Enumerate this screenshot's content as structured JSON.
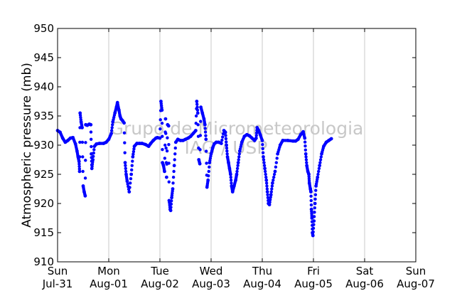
{
  "chart_data": {
    "type": "scatter",
    "ylabel": "Atmospheric pressure (mb)",
    "ylim": [
      910,
      950
    ],
    "yticks": [
      910,
      915,
      920,
      925,
      930,
      935,
      940,
      945,
      950
    ],
    "xlim": [
      "2011-07-31",
      "2011-08-07"
    ],
    "xticks": [
      {
        "day": "Sun",
        "date": "Jul-31"
      },
      {
        "day": "Mon",
        "date": "Aug-01"
      },
      {
        "day": "Tue",
        "date": "Aug-02"
      },
      {
        "day": "Wed",
        "date": "Aug-03"
      },
      {
        "day": "Thu",
        "date": "Aug-04"
      },
      {
        "day": "Fri",
        "date": "Aug-05"
      },
      {
        "day": "Sat",
        "date": "Aug-06"
      },
      {
        "day": "Sun",
        "date": "Aug-07"
      }
    ],
    "grid": "vertical",
    "marker_color": "#0000ff",
    "watermark": [
      "Grupo de Micrometeorologia",
      "IAG / USP"
    ],
    "series": [
      {
        "points": [
          [
            0.0,
            932.5
          ],
          [
            0.05,
            932.2
          ],
          [
            0.1,
            931.2
          ],
          [
            0.15,
            930.5
          ],
          [
            0.2,
            930.8
          ],
          [
            0.25,
            931.2
          ],
          [
            0.3,
            931.3
          ],
          [
            0.35,
            930.2
          ],
          [
            0.38,
            929.0
          ],
          [
            0.4,
            928.0
          ],
          [
            0.42,
            927.2
          ],
          [
            0.43,
            925.5
          ],
          [
            0.44,
            935.5
          ],
          [
            0.46,
            934.0
          ],
          [
            0.48,
            933.0
          ],
          [
            0.5,
            923.0
          ],
          [
            0.52,
            922.0
          ],
          [
            0.54,
            921.3
          ],
          [
            0.55,
            933.5
          ],
          [
            0.58,
            933.4
          ],
          [
            0.62,
            933.6
          ],
          [
            0.65,
            933.5
          ],
          [
            0.66,
            928.5
          ],
          [
            0.67,
            926.0
          ],
          [
            0.69,
            927.5
          ],
          [
            0.72,
            929.8
          ],
          [
            0.76,
            930.2
          ],
          [
            0.82,
            930.3
          ],
          [
            0.9,
            930.3
          ],
          [
            0.95,
            930.5
          ],
          [
            1.0,
            931.0
          ],
          [
            1.05,
            932.0
          ],
          [
            1.08,
            934.0
          ],
          [
            1.12,
            935.5
          ],
          [
            1.15,
            936.5
          ],
          [
            1.17,
            937.3
          ],
          [
            1.2,
            936.0
          ],
          [
            1.22,
            935.0
          ],
          [
            1.24,
            934.5
          ],
          [
            1.27,
            934.2
          ],
          [
            1.3,
            933.8
          ],
          [
            1.32,
            927.0
          ],
          [
            1.34,
            925.0
          ],
          [
            1.36,
            923.8
          ],
          [
            1.4,
            922.0
          ],
          [
            1.44,
            925.0
          ],
          [
            1.47,
            928.0
          ],
          [
            1.5,
            929.8
          ],
          [
            1.55,
            930.3
          ],
          [
            1.6,
            930.3
          ],
          [
            1.65,
            930.3
          ],
          [
            1.72,
            930.1
          ],
          [
            1.78,
            929.8
          ],
          [
            1.82,
            930.3
          ],
          [
            1.87,
            930.8
          ],
          [
            1.92,
            931.2
          ],
          [
            1.95,
            931.3
          ],
          [
            2.0,
            931.2
          ],
          [
            2.02,
            937.5
          ],
          [
            2.04,
            936.0
          ],
          [
            2.05,
            927.0
          ],
          [
            2.07,
            926.5
          ],
          [
            2.09,
            925.5
          ],
          [
            2.11,
            934.5
          ],
          [
            2.13,
            924.5
          ],
          [
            2.15,
            933.5
          ],
          [
            2.17,
            933.3
          ],
          [
            2.18,
            920.5
          ],
          [
            2.2,
            919.0
          ],
          [
            2.21,
            918.8
          ],
          [
            2.23,
            921.0
          ],
          [
            2.25,
            922.5
          ],
          [
            2.28,
            926.5
          ],
          [
            2.31,
            930.5
          ],
          [
            2.35,
            931.0
          ],
          [
            2.4,
            930.8
          ],
          [
            2.45,
            930.8
          ],
          [
            2.5,
            931.0
          ],
          [
            2.55,
            931.2
          ],
          [
            2.6,
            931.5
          ],
          [
            2.65,
            932.0
          ],
          [
            2.7,
            932.5
          ],
          [
            2.72,
            937.5
          ],
          [
            2.74,
            935.5
          ],
          [
            2.76,
            927.5
          ],
          [
            2.78,
            926.8
          ],
          [
            2.8,
            936.5
          ],
          [
            2.83,
            935.5
          ],
          [
            2.86,
            934.5
          ],
          [
            2.88,
            933.5
          ],
          [
            2.9,
            931.0
          ],
          [
            2.92,
            922.8
          ],
          [
            2.94,
            924.0
          ],
          [
            2.97,
            927.0
          ],
          [
            3.0,
            928.5
          ],
          [
            3.03,
            929.5
          ],
          [
            3.06,
            930.2
          ],
          [
            3.1,
            930.5
          ],
          [
            3.15,
            930.5
          ],
          [
            3.2,
            930.3
          ],
          [
            3.25,
            932.5
          ],
          [
            3.28,
            932.2
          ],
          [
            3.3,
            930.0
          ],
          [
            3.32,
            928.0
          ],
          [
            3.34,
            927.0
          ],
          [
            3.36,
            926.0
          ],
          [
            3.38,
            925.0
          ],
          [
            3.4,
            923.0
          ],
          [
            3.42,
            922.0
          ],
          [
            3.45,
            923.0
          ],
          [
            3.48,
            924.0
          ],
          [
            3.5,
            925.0
          ],
          [
            3.53,
            927.0
          ],
          [
            3.56,
            929.0
          ],
          [
            3.6,
            930.5
          ],
          [
            3.65,
            931.5
          ],
          [
            3.7,
            931.8
          ],
          [
            3.75,
            931.6
          ],
          [
            3.8,
            931.2
          ],
          [
            3.85,
            930.8
          ],
          [
            3.88,
            931.2
          ],
          [
            3.9,
            933.0
          ],
          [
            3.93,
            932.5
          ],
          [
            3.96,
            931.8
          ],
          [
            4.0,
            930.8
          ],
          [
            4.02,
            928.0
          ],
          [
            4.05,
            926.0
          ],
          [
            4.08,
            924.0
          ],
          [
            4.1,
            922.0
          ],
          [
            4.12,
            920.0
          ],
          [
            4.14,
            919.8
          ],
          [
            4.17,
            921.5
          ],
          [
            4.2,
            923.5
          ],
          [
            4.25,
            925.5
          ],
          [
            4.3,
            928.5
          ],
          [
            4.35,
            930.0
          ],
          [
            4.4,
            930.8
          ],
          [
            4.5,
            930.8
          ],
          [
            4.6,
            930.7
          ],
          [
            4.65,
            930.7
          ],
          [
            4.7,
            931.0
          ],
          [
            4.75,
            931.8
          ],
          [
            4.8,
            932.3
          ],
          [
            4.83,
            931.2
          ],
          [
            4.85,
            928.5
          ],
          [
            4.87,
            926.5
          ],
          [
            4.89,
            925.5
          ],
          [
            4.91,
            925.0
          ],
          [
            4.92,
            923.5
          ],
          [
            4.94,
            922.5
          ],
          [
            4.95,
            922.0
          ],
          [
            4.96,
            919.0
          ],
          [
            4.97,
            917.5
          ],
          [
            4.98,
            915.0
          ],
          [
            4.99,
            914.5
          ],
          [
            5.01,
            917.0
          ],
          [
            5.03,
            920.0
          ],
          [
            5.05,
            923.0
          ],
          [
            5.08,
            924.5
          ],
          [
            5.12,
            926.5
          ],
          [
            5.16,
            928.5
          ],
          [
            5.2,
            929.8
          ],
          [
            5.25,
            930.5
          ],
          [
            5.3,
            930.8
          ],
          [
            5.35,
            931.1
          ]
        ]
      }
    ]
  }
}
